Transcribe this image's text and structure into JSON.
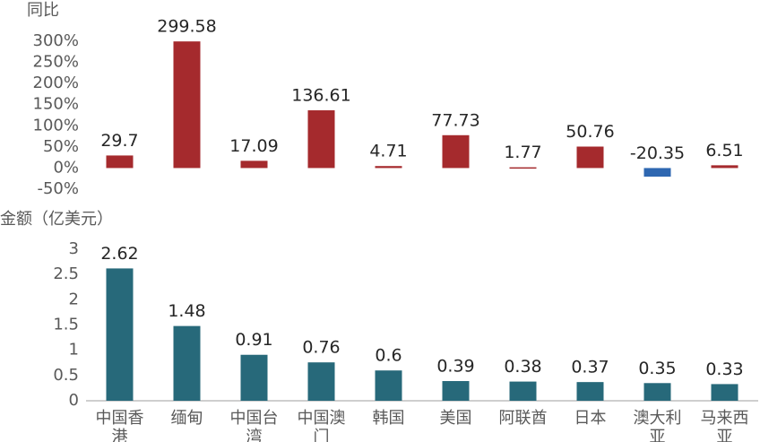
{
  "chart_data": [
    {
      "type": "bar",
      "ylabel": "同比",
      "values": [
        29.7,
        299.58,
        17.09,
        136.61,
        4.71,
        77.73,
        1.77,
        50.76,
        -20.35,
        6.51
      ],
      "color": "#a52a2d",
      "negative_color": "#2e67b1",
      "ylim": [
        -50,
        300
      ],
      "yticks": [
        {
          "value": -50,
          "label": "-50%"
        },
        {
          "value": 0,
          "label": "0%"
        },
        {
          "value": 50,
          "label": "50%"
        },
        {
          "value": 100,
          "label": "100%"
        },
        {
          "value": 150,
          "label": "150%"
        },
        {
          "value": 200,
          "label": "200%"
        },
        {
          "value": 250,
          "label": "250%"
        },
        {
          "value": 300,
          "label": "300%"
        }
      ],
      "x_axis_line": false
    },
    {
      "type": "bar",
      "ylabel": "金额（亿美元）",
      "categories": [
        "中国香港",
        "缅甸",
        "中国台湾",
        "中国澳门",
        "韩国",
        "美国",
        "阿联酋",
        "日本",
        "澳大利亚",
        "马来西亚"
      ],
      "values": [
        2.62,
        1.48,
        0.91,
        0.76,
        0.6,
        0.39,
        0.38,
        0.37,
        0.35,
        0.33
      ],
      "color": "#27697a",
      "ylim": [
        0,
        3
      ],
      "yticks": [
        0,
        0.5,
        1,
        1.5,
        2,
        2.5,
        3
      ],
      "x_axis_line": true
    }
  ]
}
